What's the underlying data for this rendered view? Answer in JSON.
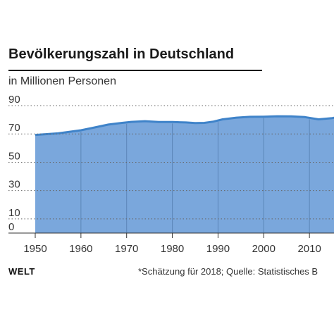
{
  "header": {
    "title": "Bevölkerungszahl in Deutschland",
    "subtitle": "in Millionen Personen"
  },
  "footer": {
    "brand": "WELT",
    "source": "*Schätzung für 2018; Quelle: Statistisches B"
  },
  "colors": {
    "area_fill": "#7aa7dc",
    "line": "#3f83c9",
    "grid": "#666666",
    "vgrid": "#5b86b8"
  },
  "chart_data": {
    "type": "area",
    "title": "Bevölkerungszahl in Deutschland",
    "ylabel": "in Millionen Personen",
    "xlabel": "",
    "xlim": [
      1950,
      2019
    ],
    "ylim": [
      0,
      90
    ],
    "yticks": [
      0,
      10,
      30,
      50,
      70,
      90
    ],
    "xticks": [
      1950,
      1960,
      1970,
      1980,
      1990,
      2000,
      2010
    ],
    "grid": "dotted horizontal",
    "series": [
      {
        "x": [
          1950,
          1955,
          1960,
          1963,
          1966,
          1969,
          1971,
          1974,
          1977,
          1980,
          1983,
          1985,
          1987,
          1989,
          1991,
          1994,
          1997,
          2000,
          2003,
          2006,
          2009,
          2012,
          2015,
          2018
        ],
        "values": [
          69.3,
          70.4,
          72.6,
          74.6,
          76.6,
          77.8,
          78.5,
          79.0,
          78.4,
          78.4,
          78.1,
          77.7,
          77.8,
          78.7,
          80.3,
          81.5,
          82.1,
          82.2,
          82.5,
          82.4,
          81.9,
          80.3,
          81.2,
          82.8
        ]
      }
    ]
  }
}
